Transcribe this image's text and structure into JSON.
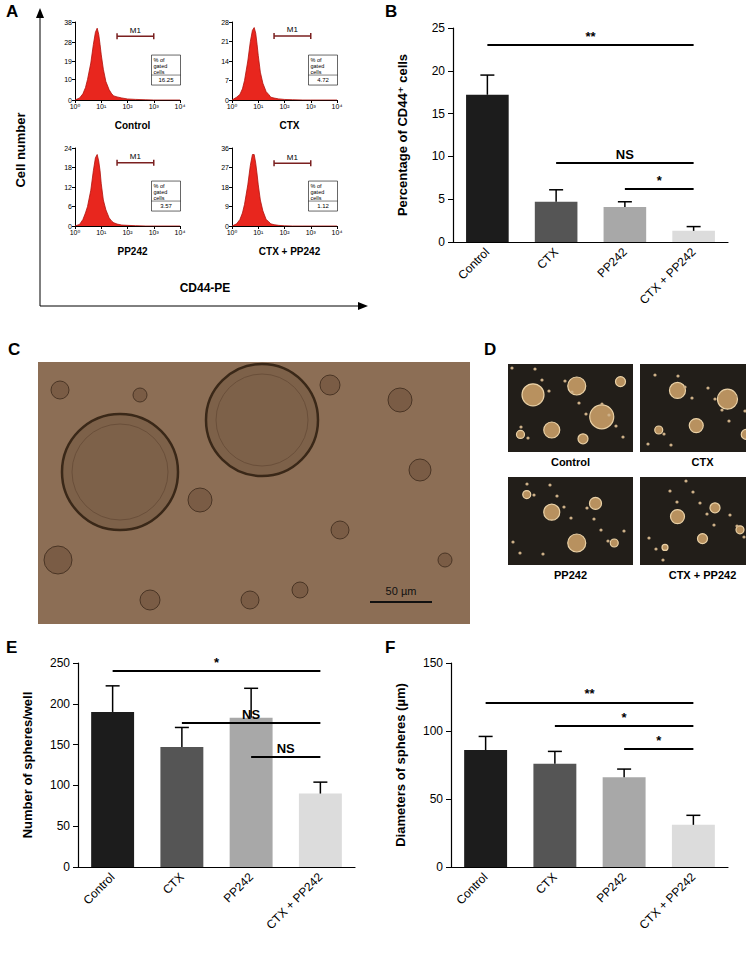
{
  "chart_data": [
    {
      "panel": "A",
      "type": "histogram",
      "x_label": "CD44-PE",
      "y_label": "Cell number",
      "log": "x",
      "grid": false,
      "histograms": [
        {
          "title": "Control",
          "color": "#e8261e",
          "x": [
            1,
            1.5,
            2,
            2.5,
            3,
            4,
            5,
            6,
            7,
            8,
            9,
            10,
            12,
            15,
            20,
            25,
            30,
            40,
            60,
            100,
            200,
            500,
            1000,
            10000
          ],
          "values": [
            0,
            1,
            3,
            6,
            10,
            18,
            27,
            33,
            35,
            32,
            27,
            22,
            15,
            9,
            5,
            3,
            2,
            1.5,
            1,
            0.5,
            0.3,
            0.1,
            0,
            0
          ],
          "xlim": [
            1,
            10000
          ],
          "xticks": [
            {
              "value": 1,
              "label": "10⁰"
            },
            {
              "value": 10,
              "label": "10¹"
            },
            {
              "value": 100,
              "label": "10²"
            },
            {
              "value": 1000,
              "label": "10³"
            },
            {
              "value": 10000,
              "label": "10⁴"
            }
          ],
          "ylim": [
            0,
            38
          ],
          "yticks": [
            0,
            10,
            19,
            28,
            38
          ],
          "gate": {
            "label": "M1",
            "range": [
              40,
              1000
            ],
            "y": 31
          },
          "gated_box": {
            "label": "% of gated cells",
            "value": 16.25
          }
        },
        {
          "title": "CTX",
          "color": "#e8261e",
          "x": [
            1,
            1.5,
            2,
            2.5,
            3,
            4,
            5,
            6,
            7,
            8,
            9,
            10,
            12,
            15,
            20,
            25,
            30,
            40,
            60,
            100,
            200,
            500,
            1000,
            10000
          ],
          "values": [
            0,
            1,
            2,
            4,
            7,
            14,
            21,
            25,
            26,
            24,
            20,
            16,
            10,
            6,
            3,
            2,
            1,
            0.7,
            0.4,
            0.2,
            0.1,
            0,
            0,
            0
          ],
          "xlim": [
            1,
            10000
          ],
          "xticks": [
            {
              "value": 1,
              "label": "10⁰"
            },
            {
              "value": 10,
              "label": "10¹"
            },
            {
              "value": 100,
              "label": "10²"
            },
            {
              "value": 1000,
              "label": "10³"
            },
            {
              "value": 10000,
              "label": "10⁴"
            }
          ],
          "ylim": [
            0,
            28
          ],
          "yticks": [
            0,
            7,
            14,
            21,
            28
          ],
          "gate": {
            "label": "M1",
            "range": [
              40,
              1000
            ],
            "y": 23
          },
          "gated_box": {
            "label": "% of gated cells",
            "value": 4.72
          }
        },
        {
          "title": "PP242",
          "color": "#e8261e",
          "x": [
            1,
            1.5,
            2,
            2.5,
            3,
            4,
            5,
            6,
            7,
            8,
            9,
            10,
            12,
            15,
            20,
            25,
            30,
            40,
            60,
            100,
            200,
            500,
            1000,
            10000
          ],
          "values": [
            0,
            0.5,
            2,
            4,
            6,
            11,
            17,
            21,
            22,
            20,
            17,
            13,
            8,
            5,
            2.5,
            1.5,
            1,
            0.6,
            0.3,
            0.2,
            0.1,
            0,
            0,
            0
          ],
          "xlim": [
            1,
            10000
          ],
          "xticks": [
            {
              "value": 1,
              "label": "10⁰"
            },
            {
              "value": 10,
              "label": "10¹"
            },
            {
              "value": 100,
              "label": "10²"
            },
            {
              "value": 1000,
              "label": "10³"
            },
            {
              "value": 10000,
              "label": "10⁴"
            }
          ],
          "ylim": [
            0,
            24
          ],
          "yticks": [
            0,
            6,
            12,
            18,
            24
          ],
          "gate": {
            "label": "M1",
            "range": [
              40,
              1000
            ],
            "y": 19.5
          },
          "gated_box": {
            "label": "% of gated cells",
            "value": 3.57
          }
        },
        {
          "title": "CTX + PP242",
          "color": "#e8261e",
          "x": [
            1,
            1.5,
            2,
            2.5,
            3,
            4,
            5,
            6,
            7,
            8,
            9,
            10,
            12,
            15,
            20,
            25,
            30,
            40,
            60,
            100,
            200,
            500,
            1000,
            10000
          ],
          "values": [
            0,
            1,
            3,
            6,
            10,
            19,
            28,
            33,
            33,
            29,
            24,
            19,
            12,
            7,
            3,
            2,
            1,
            0.6,
            0.3,
            0.1,
            0,
            0,
            0,
            0
          ],
          "xlim": [
            1,
            10000
          ],
          "xticks": [
            {
              "value": 1,
              "label": "10⁰"
            },
            {
              "value": 10,
              "label": "10¹"
            },
            {
              "value": 100,
              "label": "10²"
            },
            {
              "value": 1000,
              "label": "10³"
            },
            {
              "value": 10000,
              "label": "10⁴"
            }
          ],
          "ylim": [
            0,
            36
          ],
          "yticks": [
            0,
            9,
            18,
            27,
            36
          ],
          "gate": {
            "label": "M1",
            "range": [
              40,
              1000
            ],
            "y": 29
          },
          "gated_box": {
            "label": "% of gated cells",
            "value": 1.12
          }
        }
      ]
    },
    {
      "panel": "B",
      "type": "bar",
      "y_label": "Percentage of CD44⁺ cells",
      "grid": false,
      "categories": [
        "Control",
        "CTX",
        "PP242",
        "CTX + PP242"
      ],
      "values": [
        17.2,
        4.7,
        4.1,
        1.3
      ],
      "errors": [
        2.3,
        1.4,
        0.6,
        0.5
      ],
      "colors": [
        "#1c1c1c",
        "#555555",
        "#a8a8a8",
        "#dcdcdc"
      ],
      "ylim": [
        0,
        25
      ],
      "yticks": [
        0,
        5,
        10,
        15,
        20,
        25
      ],
      "comparisons": [
        {
          "from": "Control",
          "to": "CTX + PP242",
          "label": "**",
          "y": 23
        },
        {
          "from": "CTX",
          "to": "CTX + PP242",
          "label": "NS",
          "y": 9.2
        },
        {
          "from": "PP242",
          "to": "CTX + PP242",
          "label": "*",
          "y": 6.2
        }
      ]
    },
    {
      "panel": "E",
      "type": "bar",
      "y_label": "Number of spheres/well",
      "grid": false,
      "categories": [
        "Control",
        "CTX",
        "PP242",
        "CTX + PP242"
      ],
      "values": [
        190,
        147,
        183,
        90
      ],
      "errors": [
        32,
        24,
        36,
        14
      ],
      "colors": [
        "#1c1c1c",
        "#555555",
        "#a8a8a8",
        "#dcdcdc"
      ],
      "ylim": [
        0,
        250
      ],
      "yticks": [
        0,
        50,
        100,
        150,
        200,
        250
      ],
      "comparisons": [
        {
          "from": "Control",
          "to": "CTX + PP242",
          "label": "*",
          "y": 240
        },
        {
          "from": "CTX",
          "to": "CTX + PP242",
          "label": "NS",
          "y": 177
        },
        {
          "from": "PP242",
          "to": "CTX + PP242",
          "label": "NS",
          "y": 135
        }
      ]
    },
    {
      "panel": "F",
      "type": "bar",
      "y_label": "Diameters of spheres (µm)",
      "grid": false,
      "categories": [
        "Control",
        "CTX",
        "PP242",
        "CTX + PP242"
      ],
      "values": [
        86,
        76,
        66,
        31
      ],
      "errors": [
        10,
        9,
        6,
        7
      ],
      "colors": [
        "#1c1c1c",
        "#555555",
        "#a8a8a8",
        "#dcdcdc"
      ],
      "ylim": [
        0,
        150
      ],
      "yticks": [
        0,
        50,
        100,
        150
      ],
      "comparisons": [
        {
          "from": "Control",
          "to": "CTX + PP242",
          "label": "**",
          "y": 121
        },
        {
          "from": "CTX",
          "to": "CTX + PP242",
          "label": "*",
          "y": 104
        },
        {
          "from": "PP242",
          "to": "CTX + PP242",
          "label": "*",
          "y": 87
        }
      ]
    }
  ],
  "images": [
    {
      "panel": "C",
      "type": "micrograph",
      "scale_bar": "50 µm"
    },
    {
      "panel": "D",
      "type": "micrograph_grid",
      "labels": [
        "Control",
        "CTX",
        "PP242",
        "CTX + PP242"
      ]
    }
  ]
}
